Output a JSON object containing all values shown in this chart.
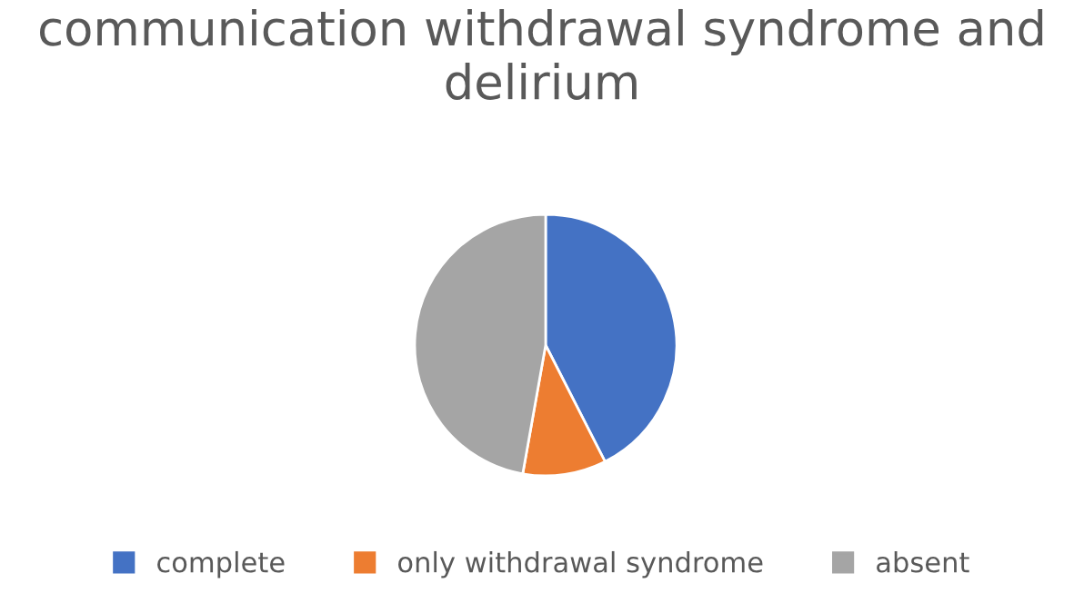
{
  "chart_data": {
    "type": "pie",
    "title": "communication withdrawal syndrome and delirium",
    "categories": [
      "complete",
      "only withdrawal syndrome",
      "absent"
    ],
    "values": [
      42.5,
      10.3,
      47.2
    ],
    "colors": [
      "#4472c4",
      "#ed7d31",
      "#a5a5a5"
    ],
    "legend": "bottom"
  }
}
